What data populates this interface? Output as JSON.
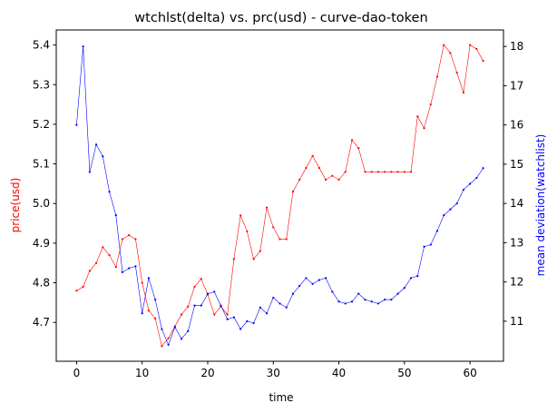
{
  "chart_data": {
    "type": "line",
    "title": "wtchlst(delta) vs. prc(usd) - curve-dao-token",
    "xlabel": "time",
    "ylabel_left": "price(usd)",
    "ylabel_right": "mean deviation(watchlist)",
    "xlim": [
      -3.1,
      65.1
    ],
    "ylim_left": [
      4.602,
      5.438
    ],
    "ylim_right": [
      9.98,
      18.42
    ],
    "x_ticks": [
      0,
      10,
      20,
      30,
      40,
      50,
      60
    ],
    "y_ticks_left": [
      4.7,
      4.8,
      4.9,
      5.0,
      5.1,
      5.2,
      5.3,
      5.4
    ],
    "y_ticks_right": [
      11,
      12,
      13,
      14,
      15,
      16,
      17,
      18
    ],
    "grid": false,
    "colors": {
      "left_series": "#ff0000",
      "right_series": "#0000ff",
      "left_label": "#ff0000",
      "right_label": "#0000ff"
    },
    "series": [
      {
        "name": "price(usd)",
        "axis": "left",
        "x": [
          0,
          1,
          2,
          3,
          4,
          5,
          6,
          7,
          8,
          9,
          10,
          11,
          12,
          13,
          14,
          15,
          16,
          17,
          18,
          19,
          20,
          21,
          22,
          23,
          24,
          25,
          26,
          27,
          28,
          29,
          30,
          31,
          32,
          33,
          34,
          35,
          36,
          37,
          38,
          39,
          40,
          41,
          42,
          43,
          44,
          45,
          46,
          47,
          48,
          49,
          50,
          51,
          52,
          53,
          54,
          55,
          56,
          57,
          58,
          59,
          60,
          61,
          62
        ],
        "values": [
          4.78,
          4.79,
          4.83,
          4.85,
          4.89,
          4.87,
          4.84,
          4.91,
          4.92,
          4.91,
          4.8,
          4.73,
          4.71,
          4.64,
          4.66,
          4.69,
          4.72,
          4.74,
          4.79,
          4.81,
          4.77,
          4.72,
          4.74,
          4.72,
          4.86,
          4.97,
          4.93,
          4.86,
          4.88,
          4.99,
          4.94,
          4.91,
          4.91,
          5.03,
          5.06,
          5.09,
          5.12,
          5.09,
          5.06,
          5.07,
          5.06,
          5.08,
          5.16,
          5.14,
          5.08,
          5.08,
          5.08,
          5.08,
          5.08,
          5.08,
          5.08,
          5.08,
          5.22,
          5.19,
          5.25,
          5.32,
          5.4,
          5.38,
          5.33,
          5.28,
          5.4,
          5.39,
          5.36
        ]
      },
      {
        "name": "mean deviation(watchlist)",
        "axis": "right",
        "x": [
          0,
          1,
          2,
          3,
          4,
          5,
          6,
          7,
          8,
          9,
          10,
          11,
          12,
          13,
          14,
          15,
          16,
          17,
          18,
          19,
          20,
          21,
          22,
          23,
          24,
          25,
          26,
          27,
          28,
          29,
          30,
          31,
          32,
          33,
          34,
          35,
          36,
          37,
          38,
          39,
          40,
          41,
          42,
          43,
          44,
          45,
          46,
          47,
          48,
          49,
          50,
          51,
          52,
          53,
          54,
          55,
          56,
          57,
          58,
          59,
          60,
          61,
          62
        ],
        "values": [
          16.0,
          18.0,
          14.8,
          15.5,
          15.2,
          14.3,
          13.7,
          12.25,
          12.35,
          12.4,
          11.2,
          12.1,
          11.55,
          10.8,
          10.4,
          10.85,
          10.55,
          10.75,
          11.4,
          11.4,
          11.7,
          11.75,
          11.4,
          11.05,
          11.1,
          10.8,
          11.0,
          10.95,
          11.35,
          11.2,
          11.6,
          11.45,
          11.35,
          11.7,
          11.9,
          12.1,
          11.95,
          12.05,
          12.1,
          11.75,
          11.5,
          11.45,
          11.5,
          11.7,
          11.55,
          11.5,
          11.45,
          11.55,
          11.55,
          11.7,
          11.85,
          12.1,
          12.15,
          12.9,
          12.95,
          13.3,
          13.7,
          13.85,
          14.0,
          14.35,
          14.5,
          14.65,
          14.9
        ]
      }
    ]
  }
}
